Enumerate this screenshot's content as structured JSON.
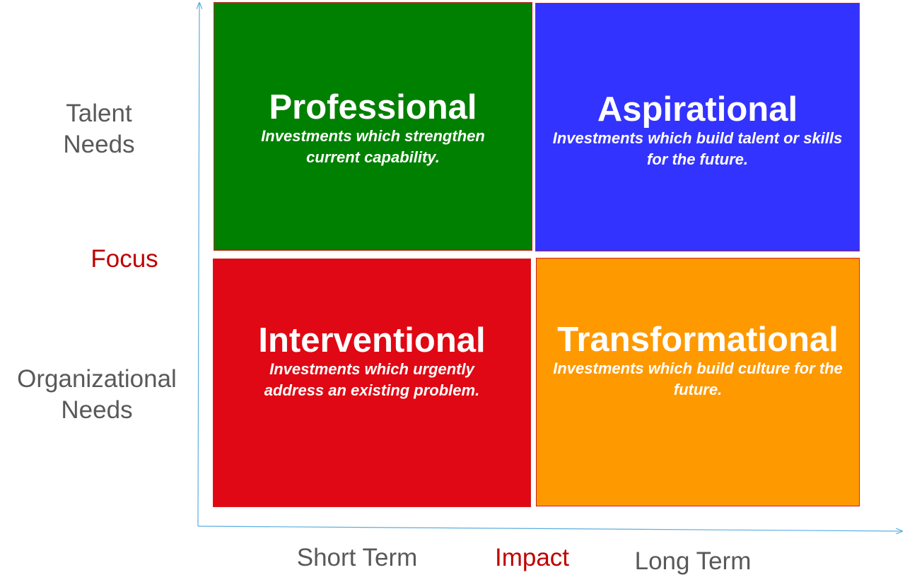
{
  "diagram": {
    "colors": {
      "professional": "#008000",
      "aspirational": "#3333ff",
      "interventional": "#e00814",
      "transformational": "#ff9900",
      "quadrant_border": "#d02020",
      "axis": "#5aaee0",
      "label_text": "#595959",
      "accent_text": "#c00000"
    },
    "quadrants": [
      {
        "id": "professional",
        "title": "Professional",
        "description": "Investments which strengthen current capability."
      },
      {
        "id": "aspirational",
        "title": "Aspirational",
        "description": "Investments which build talent or skills for the future."
      },
      {
        "id": "interventional",
        "title": "Interventional",
        "description": "Investments which urgently address an existing problem."
      },
      {
        "id": "transformational",
        "title": "Transformational",
        "description": "Investments which build culture for the future."
      }
    ],
    "y_axis": {
      "title": "Focus",
      "top_label": [
        "Talent",
        "Needs"
      ],
      "bottom_label": [
        "Organizational",
        "Needs"
      ]
    },
    "x_axis": {
      "title": "Impact",
      "left_label": "Short Term",
      "right_label": "Long Term"
    }
  }
}
